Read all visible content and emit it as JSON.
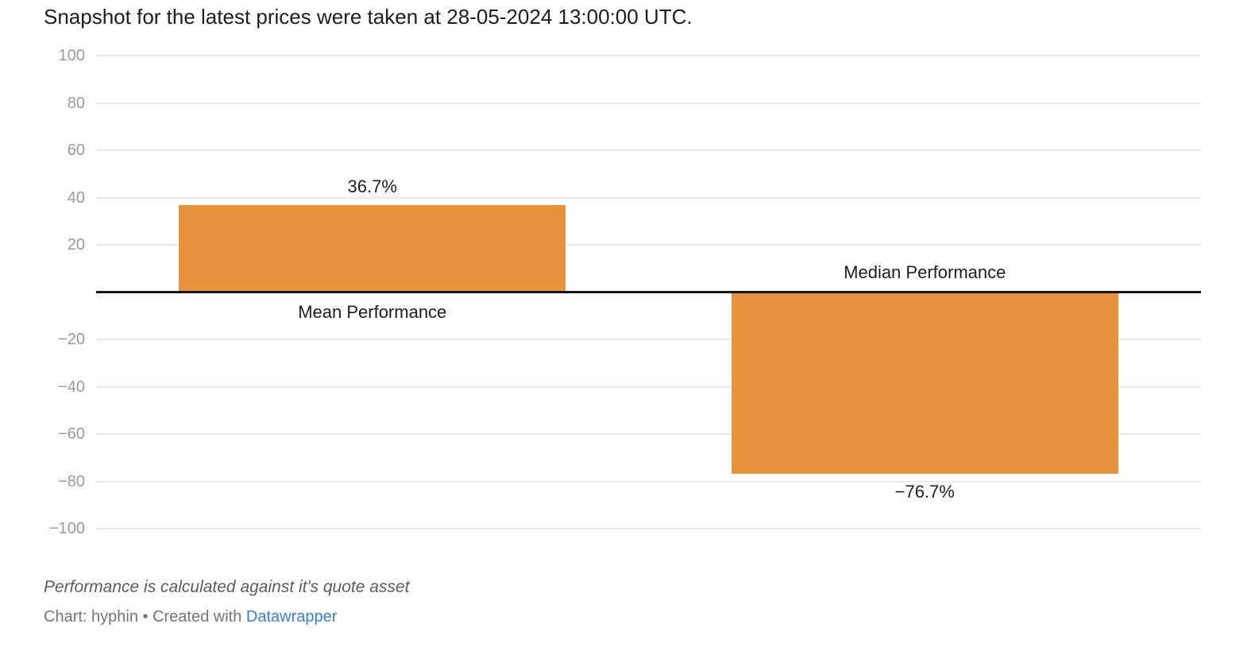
{
  "header": {
    "title": "Snapshot for the latest prices were taken at 28-05-2024 13:00:00 UTC."
  },
  "chart_data": {
    "type": "bar",
    "title": "Snapshot for the latest prices were taken at 28-05-2024 13:00:00 UTC.",
    "categories": [
      "Mean Performance",
      "Median Performance"
    ],
    "values": [
      36.7,
      -76.7
    ],
    "value_labels": [
      "36.7%",
      "−76.7%"
    ],
    "value_unit": "%",
    "xlabel": "",
    "ylabel": "",
    "ylim": [
      -100,
      100
    ],
    "yticks": [
      100,
      80,
      60,
      40,
      20,
      -20,
      -40,
      -60,
      -80,
      -100
    ],
    "grid": true,
    "legend": "none",
    "bar_color": "#e8923c"
  },
  "footer": {
    "note": "Performance is calculated against it's quote asset",
    "byline": "Chart: hyphin • Created with ",
    "link_text": "Datawrapper",
    "link_color": "#3580d2"
  },
  "colors": {
    "bar": "#e8923c",
    "axis_baseline": "#151515",
    "gridline": "#e8e8e8",
    "tick_text": "#9a9a9a",
    "label_text": "#1d1d1d",
    "note_text": "#5c5c5c",
    "byline_text": "#757575",
    "link": "#3580d2",
    "background": "#ffffff"
  }
}
